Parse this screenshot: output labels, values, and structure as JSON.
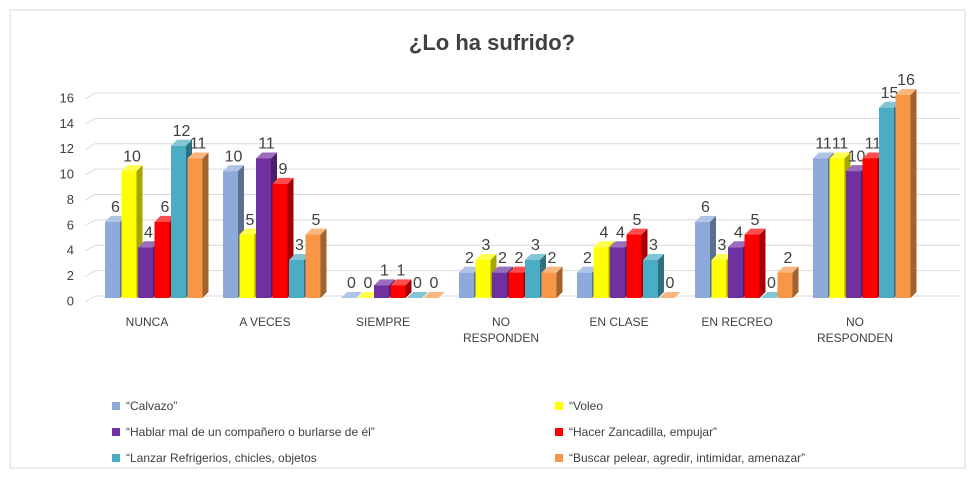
{
  "chart_data": {
    "type": "bar3d",
    "title": "¿Lo ha sufrido?",
    "categories": [
      "NUNCA",
      "A VECES",
      "SIEMPRE",
      "NO RESPONDEN",
      "EN CLASE",
      "EN RECREO",
      "NO RESPONDEN"
    ],
    "series": [
      {
        "name": "“Calvazo”",
        "color": "#8eaadb",
        "values": [
          6,
          10,
          0,
          2,
          2,
          6,
          11
        ]
      },
      {
        "name": "“Voleo",
        "color": "#ffff00",
        "values": [
          10,
          5,
          0,
          3,
          4,
          3,
          11
        ]
      },
      {
        "name": "“Hablar mal de un compañero o burlarse de él”",
        "color": "#7030a0",
        "values": [
          4,
          11,
          1,
          2,
          4,
          4,
          10
        ]
      },
      {
        "name": "“Hacer Zancadilla, empujar”",
        "color": "#ff0000",
        "values": [
          6,
          9,
          1,
          2,
          5,
          5,
          11
        ]
      },
      {
        "name": "“Lanzar Refrigerios, chicles, objetos",
        "color": "#4bacc6",
        "values": [
          12,
          3,
          0,
          3,
          3,
          0,
          15
        ]
      },
      {
        "name": "“Buscar pelear, agredir, intimidar, amenazar”",
        "color": "#f79646",
        "values": [
          11,
          5,
          0,
          2,
          0,
          2,
          16
        ]
      }
    ],
    "ylim": [
      0,
      16
    ],
    "yticks": [
      0,
      2,
      4,
      6,
      8,
      10,
      12,
      14,
      16
    ],
    "grid": true,
    "legend": "bottom"
  }
}
